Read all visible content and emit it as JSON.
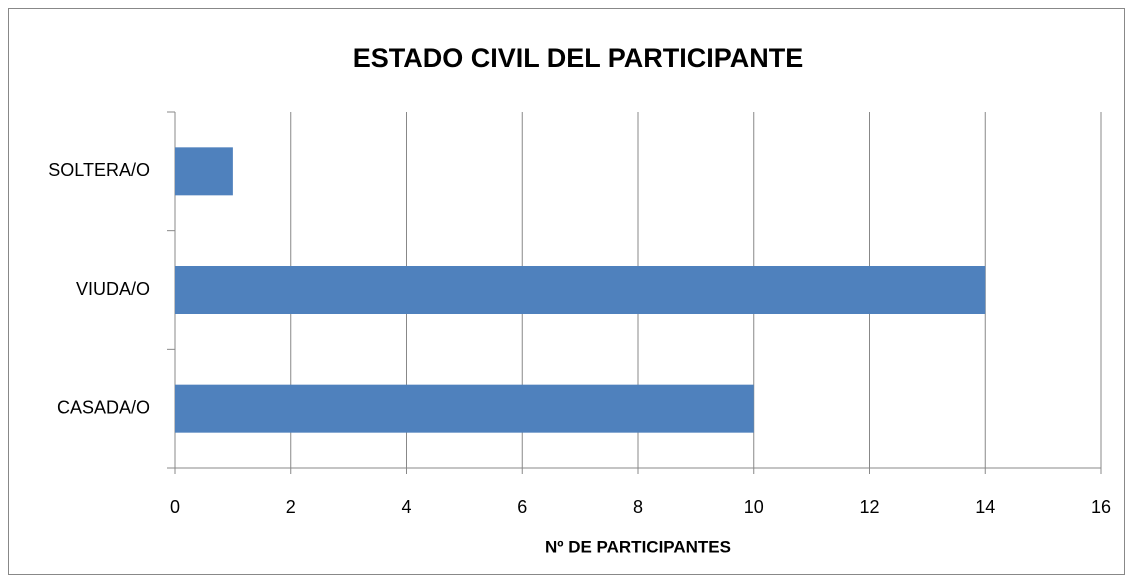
{
  "chart_data": {
    "type": "bar",
    "orientation": "horizontal",
    "title": "ESTADO CIVIL DEL PARTICIPANTE",
    "x_label": "Nº DE PARTICIPANTES",
    "categories": [
      "CASADA/O",
      "VIUDA/O",
      "SOLTERA/O"
    ],
    "values": [
      10,
      14,
      1
    ],
    "color": "#4f81bd",
    "xlim": [
      0,
      16
    ],
    "xticks": [
      0,
      2,
      4,
      6,
      8,
      10,
      12,
      14,
      16
    ],
    "grid": true
  }
}
